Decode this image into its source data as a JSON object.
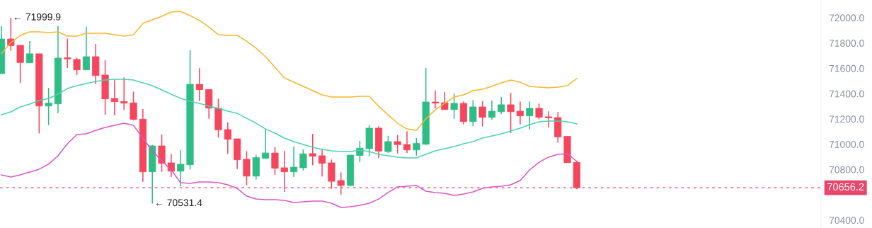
{
  "chart_data": {
    "type": "candlestick",
    "categories": [
      null,
      null,
      null,
      null,
      null,
      null,
      null,
      null,
      null,
      null,
      null,
      null,
      null,
      null,
      null,
      null,
      null,
      null,
      null,
      null,
      null,
      null,
      null,
      null,
      null,
      null,
      null,
      null,
      null,
      null,
      null,
      null,
      null,
      null,
      null,
      null,
      null,
      null,
      null,
      null,
      null,
      null,
      null,
      null,
      null,
      null,
      null,
      null,
      null,
      null,
      null,
      null,
      null,
      null,
      null,
      null,
      null,
      null,
      null,
      null,
      null,
      null
    ],
    "ohlc": [
      [
        71558,
        71933,
        71558,
        71832
      ],
      [
        71832,
        71999.9,
        71739,
        71780
      ],
      [
        71782,
        71782,
        71484,
        71646
      ],
      [
        71644,
        71815,
        71644,
        71715
      ],
      [
        71715,
        71715,
        71086,
        71302
      ],
      [
        71302,
        71446,
        71151,
        71325
      ],
      [
        71319,
        71935,
        71248,
        71681
      ],
      [
        71683,
        71836,
        71603,
        71674
      ],
      [
        71670,
        71683,
        71547,
        71588
      ],
      [
        71588,
        71929,
        71588,
        71692
      ],
      [
        71692,
        71793,
        71474,
        71543
      ],
      [
        71547,
        71664,
        71233,
        71358
      ],
      [
        71362,
        71506,
        71229,
        71336
      ],
      [
        71338,
        71528,
        71271,
        71325
      ],
      [
        71327,
        71416,
        71189,
        71196
      ],
      [
        71198,
        71278,
        70703,
        70782
      ],
      [
        70782,
        70994,
        70531.4,
        70987
      ],
      [
        70987,
        71077,
        70782,
        70849
      ],
      [
        70853,
        70924,
        70741,
        70787
      ],
      [
        70787,
        70954,
        70667,
        70842
      ],
      [
        70838,
        71743,
        70801,
        71474
      ],
      [
        71474,
        71601,
        71341,
        71431
      ],
      [
        71433,
        71433,
        71201,
        71285
      ],
      [
        71285,
        71360,
        71053,
        71114
      ],
      [
        71116,
        71173,
        70924,
        71039
      ],
      [
        71043,
        71043,
        70804,
        70877
      ],
      [
        70881,
        70946,
        70676,
        70748
      ],
      [
        70748,
        70916,
        70722,
        70894
      ],
      [
        70888,
        71120,
        70888,
        70931
      ],
      [
        70931,
        70978,
        70759,
        70810
      ],
      [
        70814,
        70946,
        70625,
        70782
      ],
      [
        70782,
        70983,
        70741,
        70819
      ],
      [
        70814,
        70959,
        70793,
        70924
      ],
      [
        70926,
        71082,
        70834,
        70905
      ],
      [
        70909,
        70965,
        70745,
        70849
      ],
      [
        70853,
        70879,
        70648,
        70707
      ],
      [
        70713,
        70778,
        70603,
        70674
      ],
      [
        70674,
        70914,
        70667,
        70914
      ],
      [
        70911,
        71026,
        70860,
        70969
      ],
      [
        70965,
        71151,
        70905,
        71127
      ],
      [
        71127,
        71142,
        70890,
        70946
      ],
      [
        70942,
        71067,
        70931,
        71021
      ],
      [
        71021,
        71073,
        70927,
        70997
      ],
      [
        70998,
        71103,
        70931,
        70955
      ],
      [
        70955,
        71049,
        70909,
        71006
      ],
      [
        71000,
        71603,
        70994,
        71334
      ],
      [
        71334,
        71425,
        71282,
        71325
      ],
      [
        71328,
        71412,
        71274,
        71274
      ],
      [
        71274,
        71401,
        71200,
        71323
      ],
      [
        71323,
        71340,
        71157,
        71179
      ],
      [
        71179,
        71349,
        71142,
        71295
      ],
      [
        71295,
        71341,
        71140,
        71213
      ],
      [
        71213,
        71345,
        71194,
        71261
      ],
      [
        71257,
        71373,
        71239,
        71312
      ],
      [
        71312,
        71407,
        71088,
        71257
      ],
      [
        71261,
        71338,
        71157,
        71224
      ],
      [
        71224,
        71338,
        71118,
        71284
      ],
      [
        71284,
        71323,
        71198,
        71213
      ],
      [
        71217,
        71260,
        71133,
        71209
      ],
      [
        71211,
        71254,
        71013,
        71058
      ],
      [
        71062,
        71062,
        70854,
        70854
      ],
      [
        70857,
        70871,
        70644,
        70656.2
      ]
    ],
    "colors": [
      "#2ebd85",
      "#f6465d",
      "#f6465d",
      "#2ebd85",
      "#f6465d",
      "#2ebd85",
      "#2ebd85",
      "#f6465d",
      "#f6465d",
      "#2ebd85",
      "#f6465d",
      "#f6465d",
      "#f6465d",
      "#f6465d",
      "#f6465d",
      "#f6465d",
      "#2ebd85",
      "#f6465d",
      "#f6465d",
      "#2ebd85",
      "#2ebd85",
      "#f6465d",
      "#f6465d",
      "#f6465d",
      "#f6465d",
      "#f6465d",
      "#f6465d",
      "#2ebd85",
      "#2ebd85",
      "#f6465d",
      "#f6465d",
      "#2ebd85",
      "#2ebd85",
      "#f6465d",
      "#f6465d",
      "#f6465d",
      "#f6465d",
      "#2ebd85",
      "#2ebd85",
      "#2ebd85",
      "#f6465d",
      "#2ebd85",
      "#f6465d",
      "#f6465d",
      "#2ebd85",
      "#2ebd85",
      "#f6465d",
      "#f6465d",
      "#2ebd85",
      "#f6465d",
      "#2ebd85",
      "#f6465d",
      "#2ebd85",
      "#2ebd85",
      "#f6465d",
      "#f6465d",
      "#2ebd85",
      "#f6465d",
      "#f6465d",
      "#f6465d",
      "#f6465d",
      "#f6465d"
    ],
    "series": [
      {
        "type": "line",
        "color": "#f5b731",
        "values": [
          71715,
          71804,
          71860,
          71888,
          71888,
          71882,
          71888,
          71855,
          71855,
          71877,
          71877,
          71877,
          71866,
          71855,
          71866,
          71955,
          71983,
          72011,
          72045,
          72050,
          72017,
          71978,
          71927,
          71866,
          71860,
          71860,
          71815,
          71759,
          71692,
          71608,
          71524,
          71491,
          71457,
          71424,
          71390,
          71373,
          71373,
          71373,
          71379,
          71379,
          71300,
          71233,
          71166,
          71121,
          71110,
          71200,
          71272,
          71323,
          71373,
          71390,
          71424,
          71435,
          71457,
          71485,
          71508,
          71491,
          71457,
          71452,
          71446,
          71452,
          71463,
          71519
        ]
      },
      {
        "type": "line",
        "color": "#4fd1b0",
        "values": [
          71233,
          71256,
          71295,
          71317,
          71345,
          71362,
          71396,
          71440,
          71463,
          71480,
          71496,
          71508,
          71513,
          71513,
          71508,
          71485,
          71463,
          71429,
          71396,
          71362,
          71340,
          71323,
          71300,
          71284,
          71261,
          71245,
          71205,
          71166,
          71121,
          71088,
          71049,
          71021,
          70998,
          70976,
          70959,
          70948,
          70942,
          70942,
          70954,
          70942,
          70920,
          70909,
          70898,
          70892,
          70892,
          70920,
          70948,
          70965,
          70981,
          71004,
          71021,
          71049,
          71066,
          71082,
          71105,
          71127,
          71155,
          71177,
          71183,
          71183,
          71177,
          71161
        ]
      },
      {
        "type": "line",
        "color": "#d957c6",
        "values": [
          70758,
          70741,
          70758,
          70780,
          70803,
          70842,
          70909,
          71004,
          71077,
          71082,
          71110,
          71133,
          71149,
          71166,
          71149,
          71049,
          70948,
          70870,
          70797,
          70696,
          70691,
          70702,
          70702,
          70696,
          70679,
          70651,
          70590,
          70567,
          70562,
          70562,
          70556,
          70539,
          70545,
          70551,
          70551,
          70534,
          70500,
          70506,
          70517,
          70534,
          70567,
          70618,
          70663,
          70668,
          70674,
          70629,
          70618,
          70612,
          70595,
          70607,
          70623,
          70651,
          70663,
          70668,
          70679,
          70713,
          70797,
          70858,
          70898,
          70920,
          70926,
          70864
        ]
      }
    ],
    "ylim": [
      70338,
      72140
    ],
    "yticks": [
      {
        "value": 70400,
        "label": "70400.0"
      },
      {
        "value": 70800,
        "label": "70800.0"
      },
      {
        "value": 71000,
        "label": "71000.0"
      },
      {
        "value": 71200,
        "label": "71200.0"
      },
      {
        "value": 71400,
        "label": "71400.0"
      },
      {
        "value": 71600,
        "label": "71600.0"
      },
      {
        "value": 71800,
        "label": "71800.0"
      },
      {
        "value": 72000,
        "label": "72000.0"
      }
    ],
    "tick_labels": "y",
    "ref_lines": [
      {
        "axis": "y",
        "value": 70656.2,
        "label": "70656.2",
        "color": "#e8466a",
        "line_style": "dashed"
      }
    ],
    "annotations": [
      "← 71999.9",
      "← 70531.4"
    ]
  }
}
